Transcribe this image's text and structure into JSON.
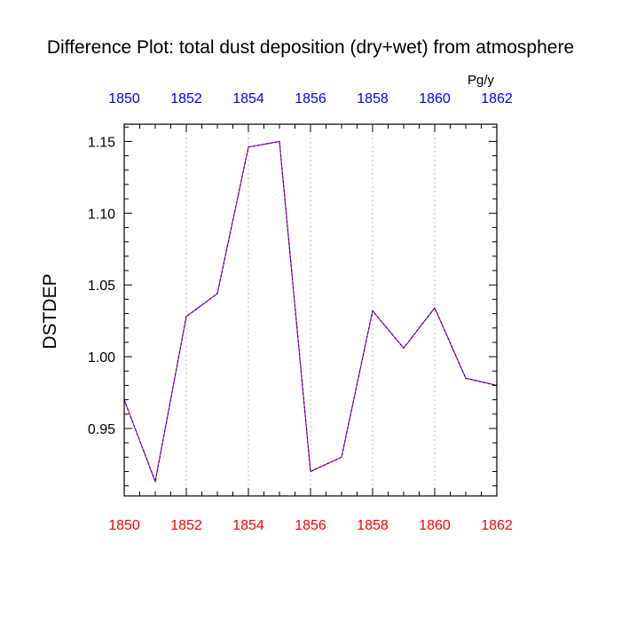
{
  "chart_data": {
    "type": "line",
    "title": "Difference Plot: total dust deposition (dry+wet) from atmosphere",
    "ylabel": "DSTDEP",
    "units_label": "Pg/y",
    "x": [
      1850,
      1851,
      1852,
      1853,
      1854,
      1855,
      1856,
      1857,
      1858,
      1859,
      1860,
      1861,
      1862
    ],
    "series": [
      {
        "values": [
          0.97,
          0.913,
          1.028,
          1.044,
          1.146,
          1.15,
          0.92,
          0.93,
          1.032,
          1.006,
          1.034,
          0.985,
          0.98
        ]
      }
    ],
    "xlim": [
      1850,
      1862
    ],
    "ylim": [
      0.903,
      1.162
    ],
    "x_ticks": [
      "1850",
      "1852",
      "1854",
      "1856",
      "1858",
      "1860",
      "1862"
    ],
    "y_ticks": [
      "0.95",
      "1.00",
      "1.05",
      "1.10",
      "1.15"
    ],
    "grid": "vertical dotted at major x ticks",
    "colors": {
      "line_primary": "#0000ff",
      "line_secondary": "#ff0000",
      "top_axis_labels": "#0000ff",
      "bottom_axis_labels": "#ff0000",
      "left_axis_labels": "#000000",
      "grid": "#bbbbbb"
    }
  }
}
